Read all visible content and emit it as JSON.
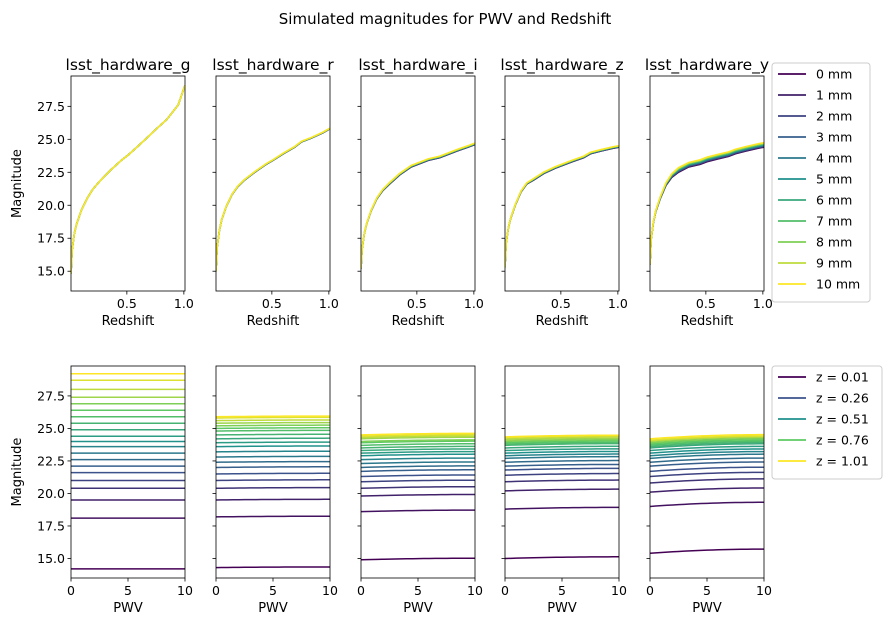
{
  "figure_title": "Simulated magnitudes for PWV and Redshift",
  "colors": {
    "viridis_0": "#440154",
    "viridis_25": "#3b528b",
    "viridis_50": "#21918c",
    "viridis_75": "#5ec962",
    "viridis_100": "#fde725"
  },
  "chart_data": [
    {
      "type": "line",
      "panel": "top",
      "titles": [
        "lsst_hardware_g",
        "lsst_hardware_r",
        "lsst_hardware_i",
        "lsst_hardware_z",
        "lsst_hardware_y"
      ],
      "xlabel": "Redshift",
      "ylabel": "Magnitude",
      "xlim": [
        0.01,
        1.01
      ],
      "ylim": [
        13.5,
        29.8
      ],
      "xticks": [
        0.5,
        1.0
      ],
      "xtick_labels": [
        "0.5",
        "1.0"
      ],
      "yticks": [
        15.0,
        17.5,
        20.0,
        22.5,
        25.0,
        27.5
      ],
      "ytick_labels": [
        "15.0",
        "17.5",
        "20.0",
        "22.5",
        "25.0",
        "27.5"
      ],
      "legend": {
        "placement": "outside-right",
        "labels": [
          "0 mm",
          "1 mm",
          "2 mm",
          "3 mm",
          "4 mm",
          "5 mm",
          "6 mm",
          "7 mm",
          "8 mm",
          "9 mm",
          "10 mm"
        ]
      },
      "x": [
        0.01,
        0.02,
        0.04,
        0.06,
        0.1,
        0.15,
        0.2,
        0.26,
        0.35,
        0.45,
        0.51,
        0.6,
        0.7,
        0.76,
        0.85,
        0.95,
        1.01
      ],
      "series_base": [
        [
          14.8,
          16.6,
          17.9,
          18.6,
          19.6,
          20.5,
          21.2,
          21.8,
          22.6,
          23.4,
          23.8,
          24.5,
          25.3,
          25.8,
          26.5,
          27.6,
          29.1
        ],
        [
          15.0,
          16.8,
          18.1,
          18.9,
          19.9,
          20.8,
          21.4,
          21.9,
          22.5,
          23.1,
          23.4,
          23.9,
          24.4,
          24.8,
          25.1,
          25.5,
          25.8
        ],
        [
          15.2,
          16.7,
          17.9,
          18.6,
          19.6,
          20.5,
          21.1,
          21.6,
          22.3,
          22.9,
          23.1,
          23.4,
          23.6,
          23.8,
          24.1,
          24.4,
          24.6
        ],
        [
          15.3,
          17.1,
          18.3,
          19.0,
          20.0,
          21.0,
          21.6,
          21.9,
          22.4,
          22.8,
          23.0,
          23.3,
          23.6,
          23.9,
          24.1,
          24.3,
          24.4
        ],
        [
          15.5,
          17.4,
          18.7,
          19.5,
          20.5,
          21.5,
          22.1,
          22.5,
          22.9,
          23.1,
          23.3,
          23.5,
          23.7,
          23.9,
          24.1,
          24.3,
          24.4
        ]
      ],
      "pwv_shift_max": [
        0.0,
        0.05,
        0.12,
        0.12,
        0.35
      ]
    },
    {
      "type": "line",
      "panel": "bottom",
      "xlabel": "PWV",
      "ylabel": "Magnitude",
      "xlim": [
        0,
        10
      ],
      "ylim": [
        13.5,
        29.8
      ],
      "xticks": [
        0,
        5,
        10
      ],
      "xtick_labels": [
        "0",
        "5",
        "10"
      ],
      "yticks": [
        15.0,
        17.5,
        20.0,
        22.5,
        25.0,
        27.5
      ],
      "ytick_labels": [
        "15.0",
        "17.5",
        "20.0",
        "22.5",
        "25.0",
        "27.5"
      ],
      "legend": {
        "placement": "outside-right",
        "labels": [
          "z = 0.01",
          "z = 0.26",
          "z = 0.51",
          "z = 0.76",
          "z = 1.01"
        ]
      },
      "redshifts": [
        0.01,
        0.06,
        0.11,
        0.16,
        0.21,
        0.26,
        0.31,
        0.36,
        0.41,
        0.46,
        0.51,
        0.56,
        0.61,
        0.66,
        0.71,
        0.76,
        0.81,
        0.86,
        0.91,
        0.96,
        1.01
      ],
      "series_at_pwv0": [
        [
          14.2,
          18.1,
          19.5,
          20.4,
          21.0,
          21.6,
          22.1,
          22.6,
          23.1,
          23.6,
          24.0,
          24.4,
          24.9,
          25.4,
          25.9,
          26.4,
          26.9,
          27.4,
          28.0,
          28.7,
          29.2
        ],
        [
          14.3,
          18.2,
          19.5,
          20.4,
          21.0,
          21.5,
          22.0,
          22.4,
          22.8,
          23.2,
          23.6,
          23.9,
          24.2,
          24.5,
          24.8,
          25.0,
          25.2,
          25.4,
          25.6,
          25.8,
          25.9
        ],
        [
          14.9,
          18.6,
          19.8,
          20.4,
          20.9,
          21.3,
          21.7,
          22.0,
          22.3,
          22.6,
          22.9,
          23.1,
          23.3,
          23.5,
          23.7,
          23.9,
          24.0,
          24.2,
          24.3,
          24.4,
          24.5
        ],
        [
          15.0,
          18.8,
          20.2,
          20.9,
          21.4,
          21.8,
          22.1,
          22.4,
          22.7,
          22.9,
          23.1,
          23.3,
          23.5,
          23.7,
          23.8,
          23.9,
          24.0,
          24.1,
          24.2,
          24.3,
          24.35
        ],
        [
          15.4,
          19.0,
          20.1,
          20.8,
          21.3,
          21.7,
          22.1,
          22.4,
          22.7,
          22.9,
          23.1,
          23.3,
          23.5,
          23.6,
          23.7,
          23.8,
          23.9,
          24.0,
          24.05,
          24.1,
          24.2
        ]
      ],
      "pwv_delta": [
        0.0,
        0.05,
        0.12,
        0.13,
        0.32
      ]
    }
  ]
}
